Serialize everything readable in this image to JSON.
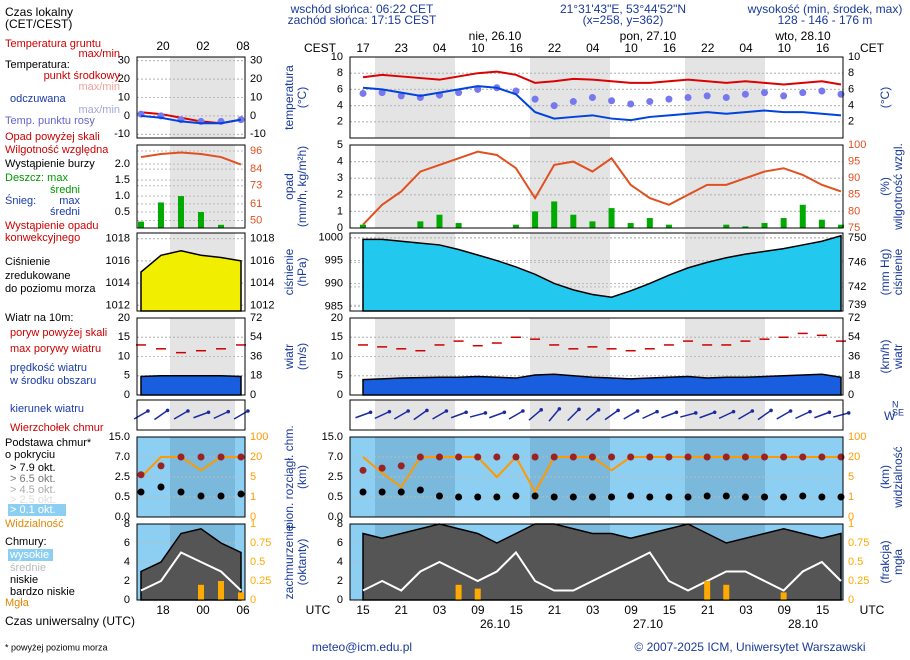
{
  "header": {
    "sunrise": "wschód słońca: 06:22 CET",
    "sunset": "zachód słońca: 17:15 CEST",
    "coords": "21°31'43\"E, 53°44'52\"N",
    "grid": "(x=258, y=362)",
    "height_title": "wysokość (min, środek, max)",
    "height": "128 - 146 - 176 m",
    "local_time": "Czas lokalny",
    "local_time_zone": "(CET/CEST)",
    "cest": "CEST",
    "cet": "CET",
    "utc_left": "UTC",
    "utc_right": "UTC",
    "universal_time": "Czas uniwersalny (UTC)"
  },
  "footer": {
    "note": "* powyżej poziomu morza",
    "email": "meteo@icm.edu.pl",
    "copyright": "© 2007-2025 ICM, Uniwersytet Warszawski"
  },
  "time_axis": {
    "cest": [
      "17",
      "23",
      "04",
      "10",
      "16",
      "22",
      "04",
      "10",
      "16",
      "22",
      "04",
      "10",
      "16"
    ],
    "utc": [
      "15",
      "21",
      "03",
      "09",
      "15",
      "21",
      "03",
      "09",
      "15",
      "21",
      "03",
      "09",
      "15"
    ],
    "days_top": [
      "nie, 26.10",
      "pon, 27.10",
      "wto, 28.10"
    ],
    "days_bottom": [
      "26.10",
      "27.10",
      "28.10"
    ],
    "left_top": [
      "20",
      "02",
      "08"
    ],
    "left_bottom": [
      "18",
      "00",
      "06"
    ]
  },
  "legend": {
    "ground_temp": "Temperatura gruntu",
    "ground_maxmin": "max/min",
    "temp": "Temperatura:",
    "temp_mid": "punkt środkowy",
    "temp_maxmin": "max/min",
    "feels": "odczuwana",
    "feels_maxmin": "max/min",
    "dew": "Temp. punktu rosy",
    "precip_over": "Opad powyżej skali",
    "humidity": "Wilgotność względna",
    "storm": "Wystąpienie burzy",
    "rain_max": "Deszcz: max",
    "rain_mean": "średni",
    "snow": "Śnieg:",
    "snow_max": "max",
    "snow_mean": "średni",
    "conv1": "Wystąpienie opadu",
    "conv2": "konwekcyjnego",
    "press1": "Ciśnienie",
    "press2": "zredukowane",
    "press3": "do poziomu morza",
    "wind": "Wiatr na 10m:",
    "gust_over": "poryw powyżej skali",
    "gust_max": "max porywy wiatru",
    "wind_speed1": "prędkość wiatru",
    "wind_speed2": "w środku obszaru",
    "wind_dir": "kierunek wiatru",
    "cloud_top": "Wierzchołek chmur",
    "cloud_base1": "Podstawa chmur*",
    "cloud_base2": "o pokryciu",
    "okt79": "> 7.9 okt.",
    "okt65": "> 6.5 okt.",
    "okt45": "> 4.5 okt.",
    "okt25": "> 2.5 okt.",
    "okt01": "> 0.1 okt.",
    "visibility": "Widzialność",
    "clouds": "Chmury:",
    "high": "wysokie",
    "mid": "średnie",
    "low": "niskie",
    "vlow": "bardzo niskie",
    "fog": "Mgła",
    "dir_w": "W",
    "dir_s": "S",
    "dir_n": "N",
    "dir_e": "E"
  },
  "chart_data": [
    {
      "type": "line",
      "ylabel": [
        "temperatura",
        "(°C)"
      ],
      "y2label": [
        "(°C)"
      ],
      "background": "#ffffff",
      "ylim": [
        0,
        10
      ],
      "yticks": [
        2,
        4,
        6,
        8,
        10
      ],
      "y2lim": [
        0,
        10
      ],
      "y2ticks": [
        2,
        4,
        6,
        8,
        10
      ],
      "series": [
        {
          "type": "line",
          "color": "#dd0000",
          "values": [
            7.5,
            7.8,
            7.6,
            7.4,
            7.2,
            7.6,
            8.0,
            8.2,
            7.8,
            6.8,
            7.0,
            7.3,
            7.2,
            7.0,
            6.8,
            6.8,
            7.0,
            7.2,
            7.0,
            6.8,
            7.0,
            6.8,
            6.6,
            6.8,
            7.0,
            6.6
          ]
        },
        {
          "type": "dots",
          "color": "#7777ee",
          "values": [
            5.5,
            5.6,
            5.2,
            5.0,
            5.3,
            5.6,
            6.0,
            6.2,
            5.8,
            4.8,
            4.0,
            4.5,
            5.0,
            4.6,
            4.2,
            4.5,
            4.8,
            5.0,
            5.2,
            5.0,
            5.4,
            5.6,
            5.2,
            5.6,
            5.8,
            5.4
          ]
        },
        {
          "type": "line",
          "color": "#0044dd",
          "values": [
            6.2,
            6.0,
            5.6,
            5.2,
            5.6,
            6.0,
            6.4,
            6.2,
            5.4,
            3.2,
            2.4,
            2.6,
            2.8,
            2.4,
            2.2,
            2.6,
            2.8,
            3.0,
            3.2,
            3.0,
            3.2,
            3.4,
            3.2,
            3.2,
            3.0,
            2.8
          ]
        }
      ]
    },
    {
      "type": "bar",
      "ylabel": [
        "opad",
        "(mm/h, kg/m²h)"
      ],
      "y2label": [
        "(%)",
        "wilgotność wzgl."
      ],
      "background": "#ffffff",
      "ylim": [
        0,
        5
      ],
      "yticks": [
        0,
        1,
        2,
        3,
        4,
        5
      ],
      "y2lim": [
        75,
        100
      ],
      "y2ticks": [
        75,
        80,
        85,
        90,
        95,
        100
      ],
      "series": [
        {
          "type": "bars",
          "color": "#00aa00",
          "values": [
            0.2,
            0,
            0,
            0.4,
            0.8,
            0.3,
            0,
            0,
            0.2,
            1.0,
            1.6,
            0.8,
            0.4,
            1.2,
            0.3,
            0.6,
            0.2,
            0,
            0,
            0.2,
            0.1,
            0.3,
            0.6,
            1.4,
            0.5,
            0.2
          ]
        },
        {
          "type": "line",
          "axis": "y2",
          "color": "#e05020",
          "values": [
            76,
            82,
            86,
            92,
            94,
            96,
            98,
            97,
            93,
            84,
            94,
            95,
            92,
            96,
            88,
            84,
            82,
            85,
            88,
            88,
            90,
            92,
            93,
            91,
            88,
            86
          ]
        }
      ]
    },
    {
      "type": "area",
      "ylabel": [
        "ciśnienie",
        "(hPa)"
      ],
      "y2label": [
        "(mm Hg)",
        "ciśnienie"
      ],
      "background": "#ffffff",
      "ylim": [
        984,
        1001
      ],
      "yticks": [
        985,
        990,
        995,
        1000
      ],
      "y2lim": [
        738.06,
        750.81
      ],
      "y2ticks": [
        739,
        742,
        746,
        750
      ],
      "series": [
        {
          "type": "area",
          "color": "#22c8ee",
          "values": [
            999.6,
            999.6,
            999.2,
            998.8,
            998.4,
            997.4,
            996.2,
            995.0,
            993.6,
            992.0,
            990.0,
            988.6,
            987.6,
            987.0,
            988.4,
            990.0,
            991.8,
            993.4,
            994.6,
            995.6,
            996.4,
            997.0,
            997.6,
            998.4,
            999.2,
            1000.4
          ]
        }
      ]
    },
    {
      "type": "area",
      "ylabel": [
        "wiatr",
        "(m/s)"
      ],
      "y2label": [
        "(km/h)",
        "wiatr"
      ],
      "background": "#ffffff",
      "ylim": [
        0,
        20
      ],
      "yticks": [
        0,
        5,
        10,
        15,
        20
      ],
      "y2lim": [
        0,
        72
      ],
      "y2ticks": [
        0,
        18,
        36,
        54,
        72
      ],
      "series": [
        {
          "type": "dashes",
          "color": "#cc0000",
          "values": [
            13,
            12.5,
            12,
            11.5,
            13,
            14,
            12.8,
            13.5,
            15,
            14.5,
            13,
            12,
            12.5,
            12,
            11.5,
            12,
            13,
            14,
            13,
            13,
            14,
            14.5,
            15,
            16,
            15.5,
            14
          ]
        },
        {
          "type": "area",
          "color": "#1a5ee0",
          "values": [
            4.0,
            4.2,
            4.4,
            4.5,
            4.6,
            4.6,
            4.8,
            4.6,
            4.4,
            5.2,
            5.4,
            5.0,
            4.6,
            4.4,
            4.2,
            4.4,
            4.6,
            4.8,
            4.4,
            4.6,
            4.6,
            4.8,
            5.0,
            5.2,
            5.4,
            4.6
          ]
        }
      ]
    },
    {
      "type": "direction",
      "background": "#ffffff",
      "color": "#1a2aa0",
      "values": [
        250,
        245,
        240,
        235,
        240,
        250,
        255,
        250,
        240,
        230,
        220,
        225,
        230,
        235,
        240,
        245,
        250,
        255,
        250,
        245,
        240,
        235,
        240,
        245,
        250,
        255
      ]
    },
    {
      "type": "scatter",
      "ylabel": [
        "pion. rozciągł. chm.",
        "(km)"
      ],
      "y2label": [
        "(km)",
        "widzialność"
      ],
      "background": "#8ccff2",
      "yscale": "piecewise",
      "ylim": [
        0,
        15
      ],
      "yticks": [
        {
          "value": 0,
          "label": "0.0"
        },
        0.5,
        2.5,
        {
          "value": 7,
          "label": "7.0"
        },
        {
          "value": 15,
          "label": "15.0"
        }
      ],
      "y2scale": "piecewise",
      "y2lim": [
        0,
        100
      ],
      "y2ticks": [
        0,
        1,
        5,
        20,
        100
      ],
      "series": [
        {
          "type": "line",
          "axis": "y2",
          "color": "#ff9900",
          "values": [
            20,
            8,
            3,
            20,
            20,
            20,
            20,
            5,
            20,
            2,
            20,
            20,
            20,
            10,
            20,
            20,
            20,
            20,
            20,
            20,
            20,
            20,
            20,
            20,
            20,
            20
          ]
        },
        {
          "type": "dots",
          "color": "#992222",
          "values": [
            4,
            4.5,
            5,
            7,
            7,
            7,
            7,
            7,
            7,
            7,
            7,
            7,
            7,
            7,
            7,
            7,
            7,
            7,
            7,
            7,
            7,
            7,
            7,
            7,
            7,
            7
          ]
        },
        {
          "type": "dots",
          "color": "#000000",
          "values": [
            1.0,
            1.0,
            1.0,
            1.2,
            0.6,
            0.5,
            0.5,
            0.5,
            0.6,
            0.6,
            0.5,
            0.5,
            0.5,
            0.5,
            0.6,
            0.5,
            0.5,
            0.5,
            0.6,
            0.6,
            0.5,
            0.5,
            0.5,
            0.6,
            0.5,
            0.5
          ]
        }
      ]
    },
    {
      "type": "area",
      "ylabel": [
        "zachmurzenie",
        "(oktanty)"
      ],
      "y2label": [
        "(frakcja)",
        "mgła"
      ],
      "background": "#8ccff2",
      "ylim": [
        0,
        8
      ],
      "yticks": [
        0,
        2,
        4,
        6,
        8
      ],
      "y2lim": [
        0,
        1
      ],
      "y2ticks": [
        0,
        0.25,
        0.5,
        0.75,
        1
      ],
      "series": [
        {
          "type": "area",
          "color": "#555555",
          "values": [
            7,
            6.5,
            7,
            7.5,
            8,
            7.5,
            7,
            6,
            7,
            8,
            8,
            7.5,
            7,
            7,
            6.5,
            7,
            7.5,
            8,
            7,
            6,
            6.5,
            7,
            7.5,
            7,
            6.5,
            7
          ]
        },
        {
          "type": "line",
          "color": "#ffffff",
          "values": [
            1,
            2,
            1,
            3,
            4,
            3,
            2,
            3,
            5,
            2,
            1,
            1,
            2,
            3,
            4,
            5,
            2,
            1,
            2,
            3,
            3,
            2,
            1,
            3,
            4,
            2
          ]
        },
        {
          "type": "bars",
          "axis": "y2",
          "color": "#ffaa00",
          "values": [
            0,
            0,
            0,
            0,
            0,
            0.2,
            0.15,
            0,
            0,
            0,
            0,
            0,
            0,
            0,
            0,
            0,
            0,
            0,
            0.25,
            0.2,
            0,
            0,
            0.1,
            0,
            0,
            0
          ]
        }
      ]
    }
  ],
  "left_charts": [
    {
      "type": "line",
      "background": "#ffffff",
      "ylim": [
        -12,
        32
      ],
      "yticks": [
        -10,
        0,
        10,
        20,
        30
      ],
      "y2lim": [
        -12,
        32
      ],
      "y2ticks": [
        -10,
        0,
        10,
        20,
        30
      ],
      "series": [
        {
          "type": "line",
          "color": "#dd0000",
          "values": [
            2,
            1,
            -1,
            -3,
            -4,
            -2
          ]
        },
        {
          "type": "dots",
          "color": "#7777ee",
          "values": [
            1,
            0,
            -2,
            -3,
            -3,
            -2
          ]
        },
        {
          "type": "line",
          "color": "#0044dd",
          "values": [
            0,
            -1,
            -3,
            -4,
            -4,
            -2
          ]
        }
      ]
    },
    {
      "type": "bar",
      "background": "#ffffff",
      "ylim": [
        0,
        2.6
      ],
      "yticks": [
        0.5,
        {
          "value": 1,
          "label": "1.0"
        },
        1.5,
        {
          "value": 2,
          "label": "2.0"
        }
      ],
      "y2lim": [
        45,
        100
      ],
      "y2ticks": [
        50,
        61,
        73,
        84,
        96
      ],
      "series": [
        {
          "type": "bars",
          "color": "#00aa00",
          "values": [
            0.2,
            0.8,
            1.0,
            0.5,
            0.1,
            0
          ]
        },
        {
          "type": "line",
          "axis": "y2",
          "color": "#e05020",
          "values": [
            92,
            94,
            95,
            94,
            92,
            87
          ]
        }
      ]
    },
    {
      "type": "area",
      "background": "#ffffff",
      "ylim": [
        1011.5,
        1018.5
      ],
      "yticks": [
        1012,
        1014,
        1016,
        1018
      ],
      "y2lim": [
        1011.5,
        1018.5
      ],
      "y2ticks": [
        1012,
        1014,
        1016,
        1018
      ],
      "series": [
        {
          "type": "area",
          "color": "#f2ee00",
          "values": [
            1015,
            1016.5,
            1016.9,
            1016.5,
            1016.3,
            1016
          ]
        }
      ]
    },
    {
      "type": "area",
      "background": "#ffffff",
      "ylim": [
        0,
        20
      ],
      "yticks": [
        0,
        5,
        10,
        15,
        20
      ],
      "y2lim": [
        0,
        72
      ],
      "y2ticks": [
        0,
        18,
        36,
        54,
        72
      ],
      "series": [
        {
          "type": "dashes",
          "color": "#cc0000",
          "values": [
            13,
            12,
            11,
            11.5,
            12,
            13
          ]
        },
        {
          "type": "area",
          "color": "#1a5ee0",
          "values": [
            4.8,
            5,
            5,
            5,
            5,
            4.8
          ]
        }
      ]
    },
    {
      "type": "direction",
      "background": "#ffffff",
      "color": "#1a2aa0",
      "values": [
        240,
        235,
        240,
        250,
        245,
        240
      ]
    },
    {
      "type": "scatter",
      "background": "#8ccff2",
      "yscale": "piecewise",
      "ylim": [
        0,
        15
      ],
      "yticks": [
        {
          "value": 0,
          "label": "0.0"
        },
        0.5,
        2.5,
        {
          "value": 7,
          "label": "7.0"
        },
        {
          "value": 15,
          "label": "15.0"
        }
      ],
      "y2scale": "piecewise",
      "y2lim": [
        0,
        100
      ],
      "y2ticks": [
        0,
        1,
        5,
        20,
        100
      ],
      "series": [
        {
          "type": "line",
          "axis": "y2",
          "color": "#ff9900",
          "values": [
            5,
            20,
            20,
            10,
            20,
            20
          ]
        },
        {
          "type": "dots",
          "color": "#992222",
          "values": [
            3,
            5,
            7,
            7,
            7,
            7
          ]
        },
        {
          "type": "dots",
          "color": "#000000",
          "values": [
            1,
            1.5,
            1,
            0.6,
            0.6,
            0.8
          ]
        }
      ]
    },
    {
      "type": "area",
      "background": "#8ccff2",
      "ylim": [
        0,
        8
      ],
      "yticks": [
        0,
        2,
        4,
        6,
        8
      ],
      "y2lim": [
        0,
        1
      ],
      "y2ticks": [
        0,
        0.25,
        0.5,
        0.75,
        1
      ],
      "series": [
        {
          "type": "area",
          "color": "#555555",
          "values": [
            3,
            4,
            7,
            7.5,
            6,
            5
          ]
        },
        {
          "type": "line",
          "color": "#ffffff",
          "values": [
            1,
            2,
            5,
            4,
            3,
            1
          ]
        },
        {
          "type": "bars",
          "axis": "y2",
          "color": "#ffaa00",
          "values": [
            0,
            0,
            0,
            0.2,
            0.25,
            0.1
          ]
        }
      ]
    }
  ]
}
